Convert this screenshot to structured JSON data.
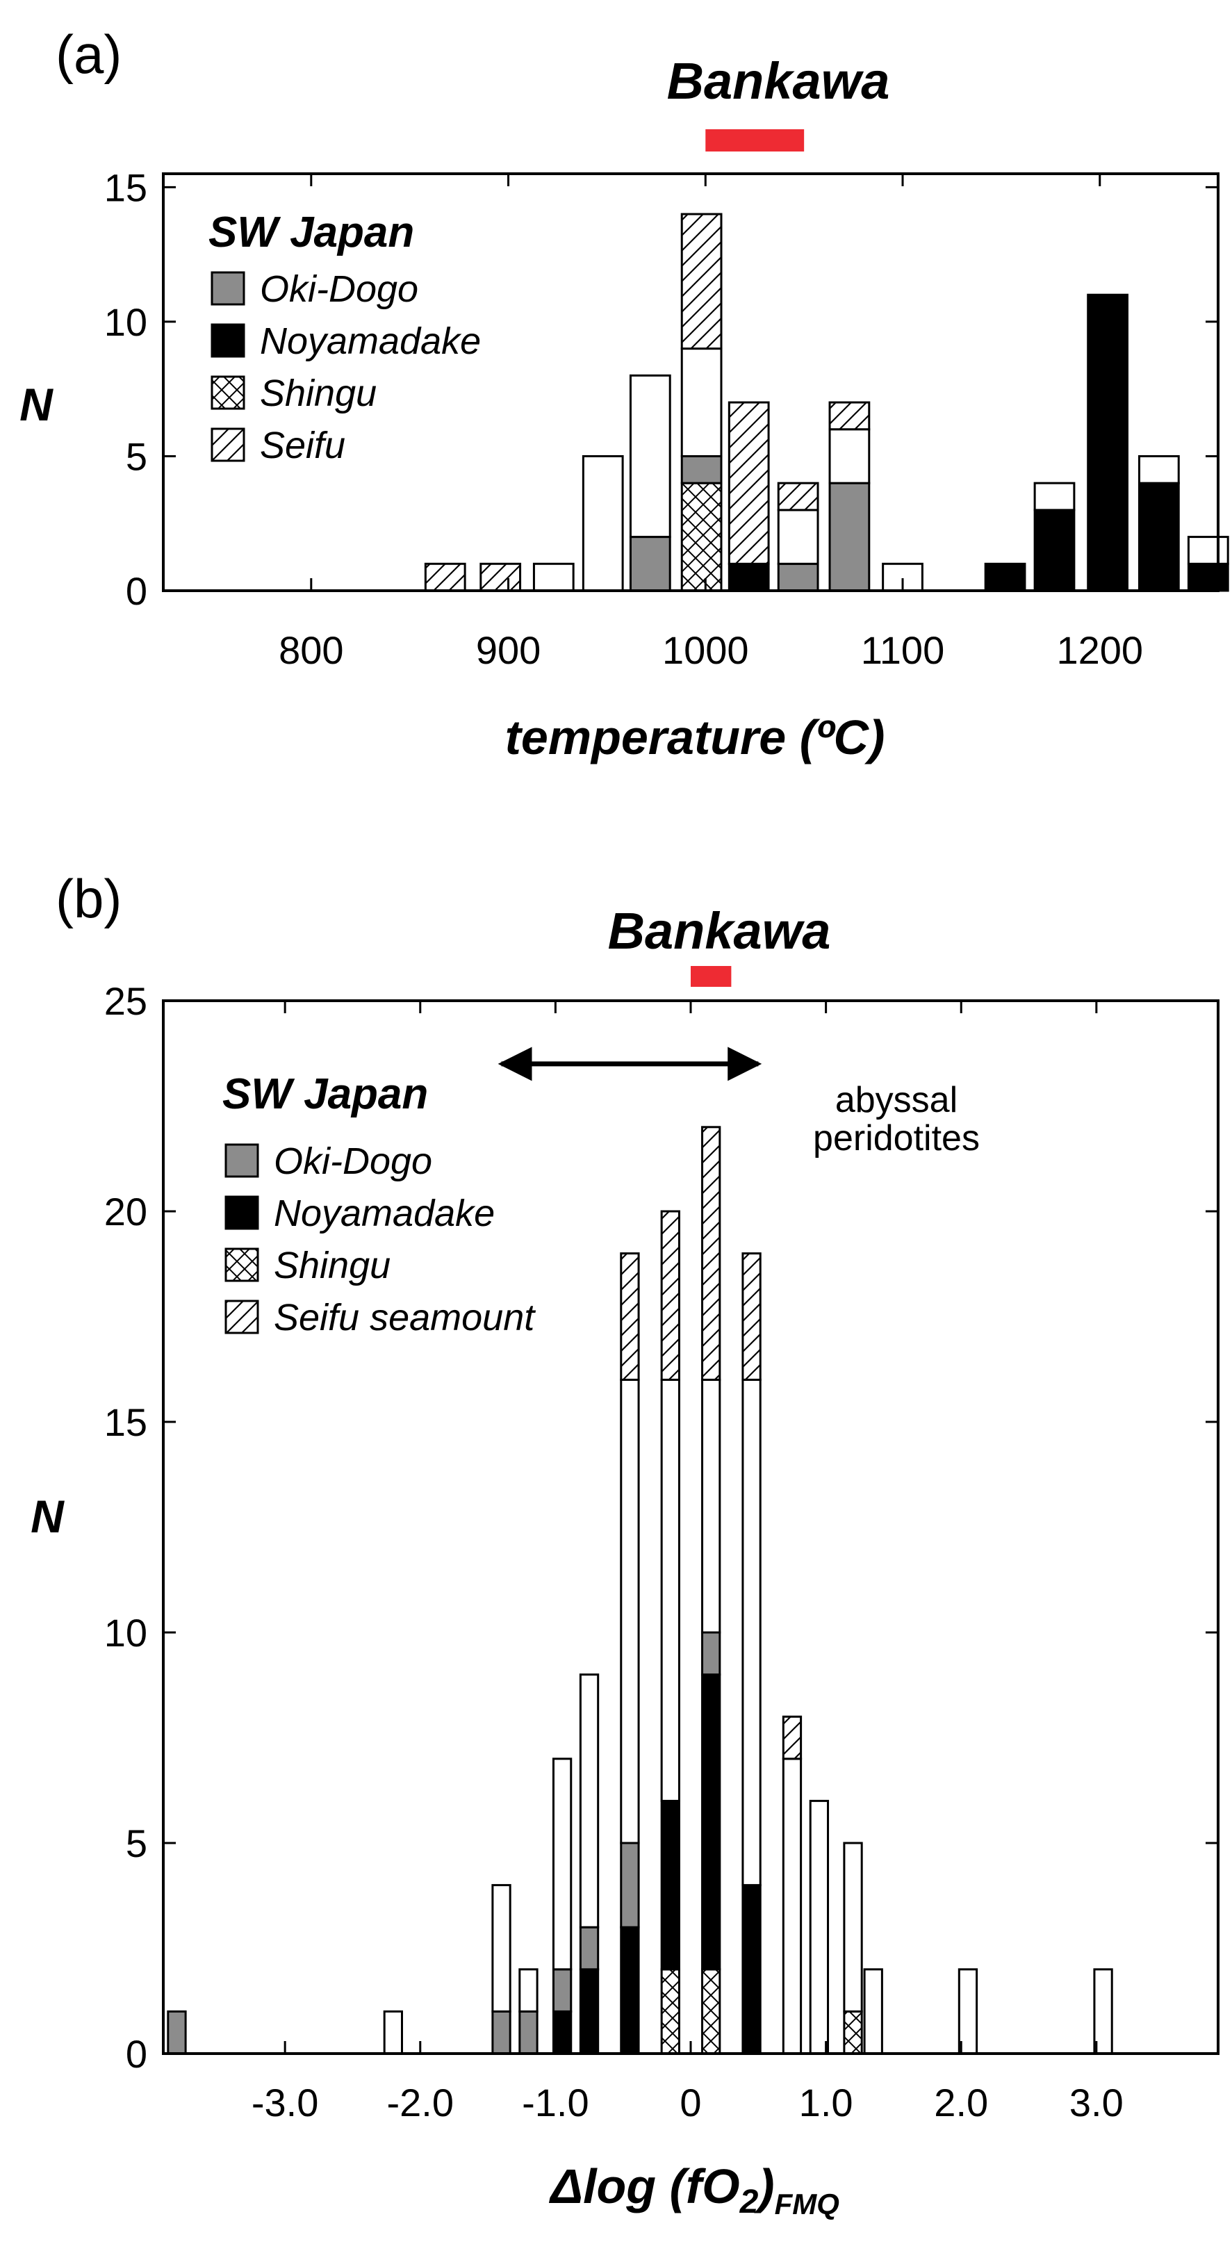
{
  "colors": {
    "grey": "#8c8c8c",
    "black": "#000000",
    "open": "#ffffff",
    "bankawa_bar": "#ee2b33"
  },
  "chart_data": [
    {
      "type": "bar",
      "stacked": true,
      "panel_label": "(a)",
      "title": "Bankawa",
      "bankawa_range": [
        1000,
        1050
      ],
      "xlabel": "temperature (ºC)",
      "ylabel": "N",
      "xlim": [
        725,
        1260
      ],
      "ylim": [
        0,
        15.5
      ],
      "xticks": [
        800,
        900,
        1000,
        1100,
        1200
      ],
      "xtick_labels": [
        "800",
        "900",
        "1000",
        "1100",
        "1200"
      ],
      "yticks": [
        0,
        5,
        10,
        15
      ],
      "ytick_labels": [
        "0",
        "5",
        "10",
        "15"
      ],
      "bin_width": 20,
      "legend": {
        "title": "SW Japan",
        "entries": [
          {
            "label": "Oki-Dogo",
            "fill": "grey"
          },
          {
            "label": "Noyamadake",
            "fill": "black"
          },
          {
            "label": "Shingu",
            "fill": "crosshatch"
          },
          {
            "label": "Seifu",
            "fill": "hatch"
          }
        ]
      },
      "bins": [
        {
          "x": 868,
          "segments": [
            {
              "fill": "hatch",
              "value": 1
            }
          ]
        },
        {
          "x": 896,
          "segments": [
            {
              "fill": "hatch",
              "value": 1
            }
          ]
        },
        {
          "x": 923,
          "segments": [
            {
              "fill": "open",
              "value": 1
            }
          ]
        },
        {
          "x": 948,
          "segments": [
            {
              "fill": "open",
              "value": 5
            }
          ]
        },
        {
          "x": 972,
          "segments": [
            {
              "fill": "grey",
              "value": 2
            },
            {
              "fill": "open",
              "value": 6
            }
          ]
        },
        {
          "x": 998,
          "segments": [
            {
              "fill": "crosshatch",
              "value": 4
            },
            {
              "fill": "grey",
              "value": 1
            },
            {
              "fill": "open",
              "value": 4
            },
            {
              "fill": "hatch",
              "value": 5
            }
          ]
        },
        {
          "x": 1022,
          "segments": [
            {
              "fill": "black",
              "value": 1
            },
            {
              "fill": "hatch",
              "value": 6
            }
          ]
        },
        {
          "x": 1047,
          "segments": [
            {
              "fill": "grey",
              "value": 1
            },
            {
              "fill": "open",
              "value": 2
            },
            {
              "fill": "hatch",
              "value": 1
            }
          ]
        },
        {
          "x": 1073,
          "segments": [
            {
              "fill": "grey",
              "value": 4
            },
            {
              "fill": "open",
              "value": 2
            },
            {
              "fill": "hatch",
              "value": 1
            }
          ]
        },
        {
          "x": 1100,
          "segments": [
            {
              "fill": "open",
              "value": 1
            }
          ]
        },
        {
          "x": 1152,
          "segments": [
            {
              "fill": "black",
              "value": 1
            }
          ]
        },
        {
          "x": 1177,
          "segments": [
            {
              "fill": "black",
              "value": 3
            },
            {
              "fill": "open",
              "value": 1
            }
          ]
        },
        {
          "x": 1204,
          "segments": [
            {
              "fill": "black",
              "value": 11
            }
          ]
        },
        {
          "x": 1230,
          "segments": [
            {
              "fill": "black",
              "value": 4
            },
            {
              "fill": "open",
              "value": 1
            }
          ]
        },
        {
          "x": 1255,
          "segments": [
            {
              "fill": "black",
              "value": 1
            },
            {
              "fill": "open",
              "value": 1
            }
          ]
        }
      ]
    },
    {
      "type": "bar",
      "stacked": true,
      "panel_label": "(b)",
      "title": "Bankawa",
      "bankawa_range": [
        0,
        0.3
      ],
      "xlabel_prefix": "Δlog (fO",
      "xlabel_sub": "2",
      "xlabel_suffix": ")",
      "xlabel_subscript": "FMQ",
      "ylabel": "N",
      "xlim": [
        -3.9,
        3.9
      ],
      "ylim": [
        0,
        25
      ],
      "xticks": [
        -3,
        -2,
        -1,
        0,
        1,
        2,
        3
      ],
      "xtick_labels": [
        "-3.0",
        "-2.0",
        "-1.0",
        "0",
        "1.0",
        "2.0",
        "3.0"
      ],
      "yticks": [
        0,
        5,
        10,
        15,
        20,
        25
      ],
      "ytick_labels": [
        "0",
        "5",
        "10",
        "15",
        "20",
        "25"
      ],
      "bin_width": 0.13,
      "annotation": {
        "text_line1": "abyssal",
        "text_line2": "peridotites",
        "arrow_from": -1.4,
        "arrow_to": 0.5,
        "y": 23.5
      },
      "legend": {
        "title": "SW Japan",
        "entries": [
          {
            "label": "Oki-Dogo",
            "fill": "grey"
          },
          {
            "label": "Noyamadake",
            "fill": "black"
          },
          {
            "label": "Shingu",
            "fill": "crosshatch"
          },
          {
            "label": "Seifu seamount",
            "fill": "hatch"
          }
        ]
      },
      "bins": [
        {
          "x": -3.8,
          "segments": [
            {
              "fill": "grey",
              "value": 1
            }
          ]
        },
        {
          "x": -2.2,
          "segments": [
            {
              "fill": "open",
              "value": 1
            }
          ]
        },
        {
          "x": -1.4,
          "segments": [
            {
              "fill": "grey",
              "value": 1
            },
            {
              "fill": "open",
              "value": 3
            }
          ]
        },
        {
          "x": -1.2,
          "segments": [
            {
              "fill": "grey",
              "value": 1
            },
            {
              "fill": "open",
              "value": 1
            }
          ]
        },
        {
          "x": -0.95,
          "segments": [
            {
              "fill": "black",
              "value": 1
            },
            {
              "fill": "grey",
              "value": 1
            },
            {
              "fill": "open",
              "value": 5
            }
          ]
        },
        {
          "x": -0.75,
          "segments": [
            {
              "fill": "black",
              "value": 2
            },
            {
              "fill": "grey",
              "value": 1
            },
            {
              "fill": "open",
              "value": 6
            }
          ]
        },
        {
          "x": -0.45,
          "segments": [
            {
              "fill": "black",
              "value": 3
            },
            {
              "fill": "grey",
              "value": 2
            },
            {
              "fill": "open",
              "value": 11
            },
            {
              "fill": "hatch",
              "value": 3
            }
          ]
        },
        {
          "x": -0.15,
          "segments": [
            {
              "fill": "crosshatch",
              "value": 2
            },
            {
              "fill": "black",
              "value": 4
            },
            {
              "fill": "open",
              "value": 10
            },
            {
              "fill": "hatch",
              "value": 4
            }
          ]
        },
        {
          "x": 0.15,
          "segments": [
            {
              "fill": "crosshatch",
              "value": 2
            },
            {
              "fill": "black",
              "value": 7
            },
            {
              "fill": "grey",
              "value": 1
            },
            {
              "fill": "open",
              "value": 6
            },
            {
              "fill": "hatch",
              "value": 6
            }
          ]
        },
        {
          "x": 0.45,
          "segments": [
            {
              "fill": "black",
              "value": 4
            },
            {
              "fill": "open",
              "value": 12
            },
            {
              "fill": "hatch",
              "value": 3
            }
          ]
        },
        {
          "x": 0.75,
          "segments": [
            {
              "fill": "open",
              "value": 7
            },
            {
              "fill": "hatch",
              "value": 1
            }
          ]
        },
        {
          "x": 0.95,
          "segments": [
            {
              "fill": "open",
              "value": 6
            }
          ]
        },
        {
          "x": 1.2,
          "segments": [
            {
              "fill": "crosshatch",
              "value": 1
            },
            {
              "fill": "open",
              "value": 4
            }
          ]
        },
        {
          "x": 1.35,
          "segments": [
            {
              "fill": "open",
              "value": 2
            }
          ]
        },
        {
          "x": 2.05,
          "segments": [
            {
              "fill": "open",
              "value": 2
            }
          ]
        },
        {
          "x": 3.05,
          "segments": [
            {
              "fill": "open",
              "value": 2
            }
          ]
        }
      ]
    }
  ]
}
